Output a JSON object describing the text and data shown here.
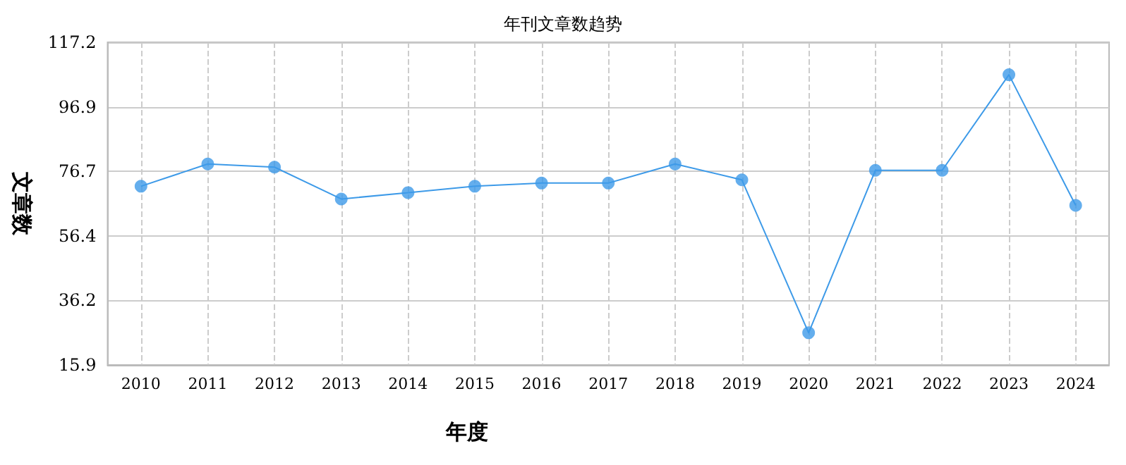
{
  "chart_data": {
    "type": "line",
    "title": "年刊文章数趋势",
    "xlabel": "年度",
    "ylabel": "文章数",
    "categories": [
      "2010",
      "2011",
      "2012",
      "2013",
      "2014",
      "2015",
      "2016",
      "2017",
      "2018",
      "2019",
      "2020",
      "2021",
      "2022",
      "2023",
      "2024"
    ],
    "series": [
      {
        "color": "#3d9ae8",
        "values": [
          72,
          79,
          78,
          68,
          70,
          72,
          73,
          73,
          79,
          74,
          26,
          77,
          77,
          107,
          66
        ]
      }
    ],
    "ylim": [
      15.9,
      117.2
    ],
    "yticks": [
      15.9,
      36.2,
      56.4,
      76.7,
      96.9,
      117.2
    ],
    "grid": true,
    "marker": "circle",
    "line_style": "solid"
  }
}
